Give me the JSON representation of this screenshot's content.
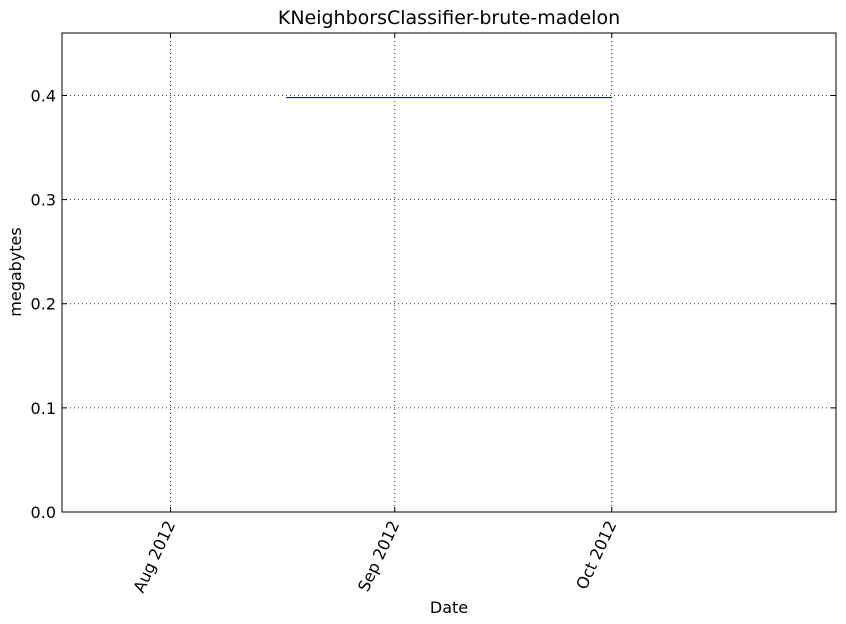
{
  "chart_data": {
    "type": "line",
    "title": "KNeighborsClassifier-brute-madelon",
    "xlabel": "Date",
    "ylabel": "megabytes",
    "x_axis_type": "date",
    "xlim": [
      "2012-07-17",
      "2012-11-01"
    ],
    "ylim": [
      0,
      0.46
    ],
    "x_ticks": [
      {
        "date": "2012-08-01",
        "label": "Aug 2012"
      },
      {
        "date": "2012-09-01",
        "label": "Sep 2012"
      },
      {
        "date": "2012-10-01",
        "label": "Oct 2012"
      }
    ],
    "y_ticks": [
      {
        "value": 0.0,
        "label": "0.0"
      },
      {
        "value": 0.1,
        "label": "0.1"
      },
      {
        "value": 0.2,
        "label": "0.2"
      },
      {
        "value": 0.3,
        "label": "0.3"
      },
      {
        "value": 0.4,
        "label": "0.4"
      }
    ],
    "grid": true,
    "series": [
      {
        "color": "#0000ff",
        "points": [
          {
            "x": "2012-08-17",
            "y": 0.398
          },
          {
            "x": "2012-10-01",
            "y": 0.398
          }
        ]
      }
    ]
  }
}
